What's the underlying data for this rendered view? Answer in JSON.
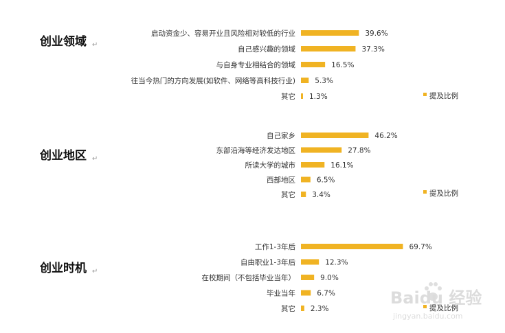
{
  "chart_data": [
    {
      "type": "bar",
      "orientation": "horizontal",
      "section_label": "创业领域",
      "label_mark": "↵",
      "categories": [
        "启动资金少、容易开业且风险相对较低的行业",
        "自己感兴趣的领域",
        "与自身专业相结合的领域",
        "往当今热门的方向发展(如软件、网络等高科技行业)",
        "其它"
      ],
      "values": [
        39.6,
        37.3,
        16.5,
        5.3,
        1.3
      ],
      "value_labels": [
        "39.6%",
        "37.3%",
        "16.5%",
        "5.3%",
        "1.3%"
      ],
      "series": [
        {
          "name": "提及比例",
          "values": [
            39.6,
            37.3,
            16.5,
            5.3,
            1.3
          ]
        }
      ],
      "legend": "bottom-right",
      "xlim": [
        0,
        75
      ],
      "grid": false
    },
    {
      "type": "bar",
      "orientation": "horizontal",
      "section_label": "创业地区",
      "label_mark": "↵",
      "categories": [
        "自己家乡",
        "东部沿海等经济发达地区",
        "所读大学的城市",
        "西部地区",
        "其它"
      ],
      "values": [
        46.2,
        27.8,
        16.1,
        6.5,
        3.4
      ],
      "value_labels": [
        "46.2%",
        "27.8%",
        "16.1%",
        "6.5%",
        "3.4%"
      ],
      "series": [
        {
          "name": "提及比例",
          "values": [
            46.2,
            27.8,
            16.1,
            6.5,
            3.4
          ]
        }
      ],
      "legend": "bottom-right",
      "xlim": [
        0,
        75
      ],
      "grid": false
    },
    {
      "type": "bar",
      "orientation": "horizontal",
      "section_label": "创业时机",
      "label_mark": "↵",
      "categories": [
        "工作1-3年后",
        "自由职业1-3年后",
        "在校期间（不包括毕业当年）",
        "毕业当年",
        "其它"
      ],
      "values": [
        69.7,
        12.3,
        9.0,
        6.7,
        2.3
      ],
      "value_labels": [
        "69.7%",
        "12.3%",
        "9.0%",
        "6.7%",
        "2.3%"
      ],
      "series": [
        {
          "name": "提及比例",
          "values": [
            69.7,
            12.3,
            9.0,
            6.7,
            2.3
          ]
        }
      ],
      "legend": "bottom-right",
      "xlim": [
        0,
        75
      ],
      "grid": false
    }
  ],
  "watermark": {
    "main": "Baidu 经验",
    "sub": "jingyan.baidu.com"
  },
  "colors": {
    "bar": "#f0b323",
    "text": "#333333",
    "title": "#111111"
  }
}
